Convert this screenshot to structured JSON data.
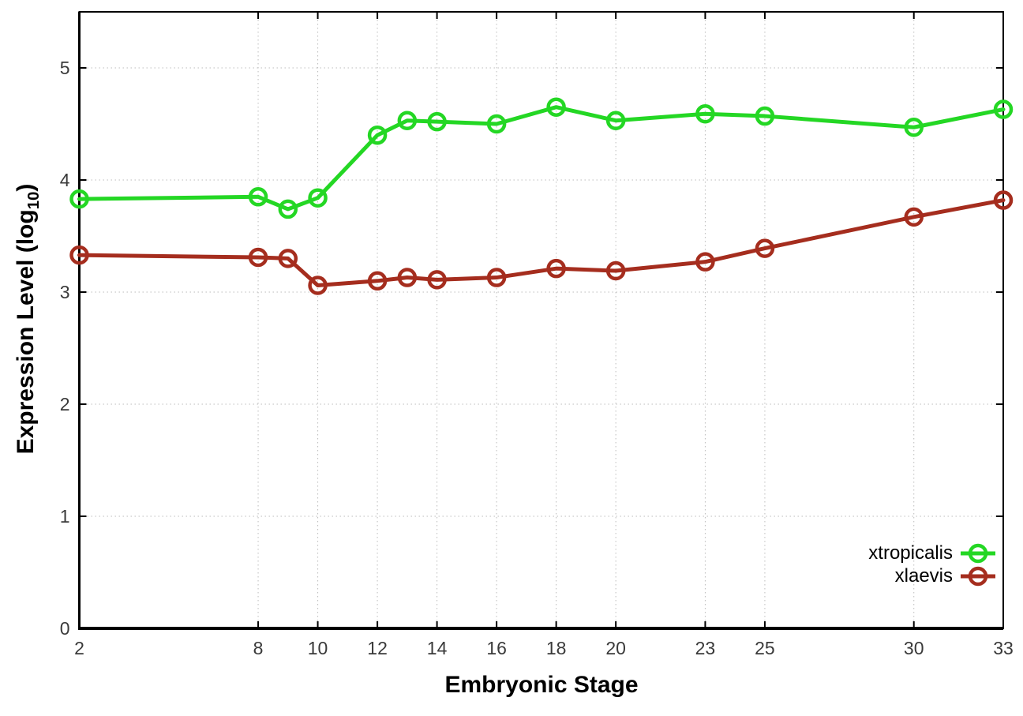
{
  "chart_data": {
    "type": "line",
    "xlabel": "Embryonic Stage",
    "ylabel_prefix": "Expression Level (log",
    "ylabel_sub": "10",
    "ylabel_suffix": ")",
    "x": [
      2,
      8,
      9,
      10,
      12,
      13,
      14,
      16,
      18,
      20,
      23,
      25,
      30,
      33
    ],
    "series": [
      {
        "name": "xtropicalis",
        "color": "#24d724",
        "values": [
          3.83,
          3.85,
          3.74,
          3.84,
          4.4,
          4.53,
          4.52,
          4.5,
          4.65,
          4.53,
          4.59,
          4.57,
          4.47,
          4.63
        ]
      },
      {
        "name": "xlaevis",
        "color": "#a52d1e",
        "values": [
          3.33,
          3.31,
          3.3,
          3.06,
          3.1,
          3.13,
          3.11,
          3.13,
          3.21,
          3.19,
          3.27,
          3.39,
          3.67,
          3.82
        ]
      }
    ],
    "x_tick_values": [
      2,
      8,
      10,
      12,
      14,
      16,
      18,
      20,
      23,
      25,
      30,
      33
    ],
    "x_tick_labels": [
      "2",
      "8",
      "10",
      "12",
      "14",
      "16",
      "18",
      "20",
      "23",
      "25",
      "30",
      "33"
    ],
    "y_ticks": [
      0,
      1,
      2,
      3,
      4,
      5
    ],
    "xlim": [
      2,
      33
    ],
    "ylim": [
      0,
      5.5
    ],
    "grid": true,
    "grid_color": "#bcbcbc",
    "border_color": "#000000",
    "tick_label_color": "#3a3a3a",
    "marker": "open-circle",
    "legend_position": "bottom-right"
  }
}
